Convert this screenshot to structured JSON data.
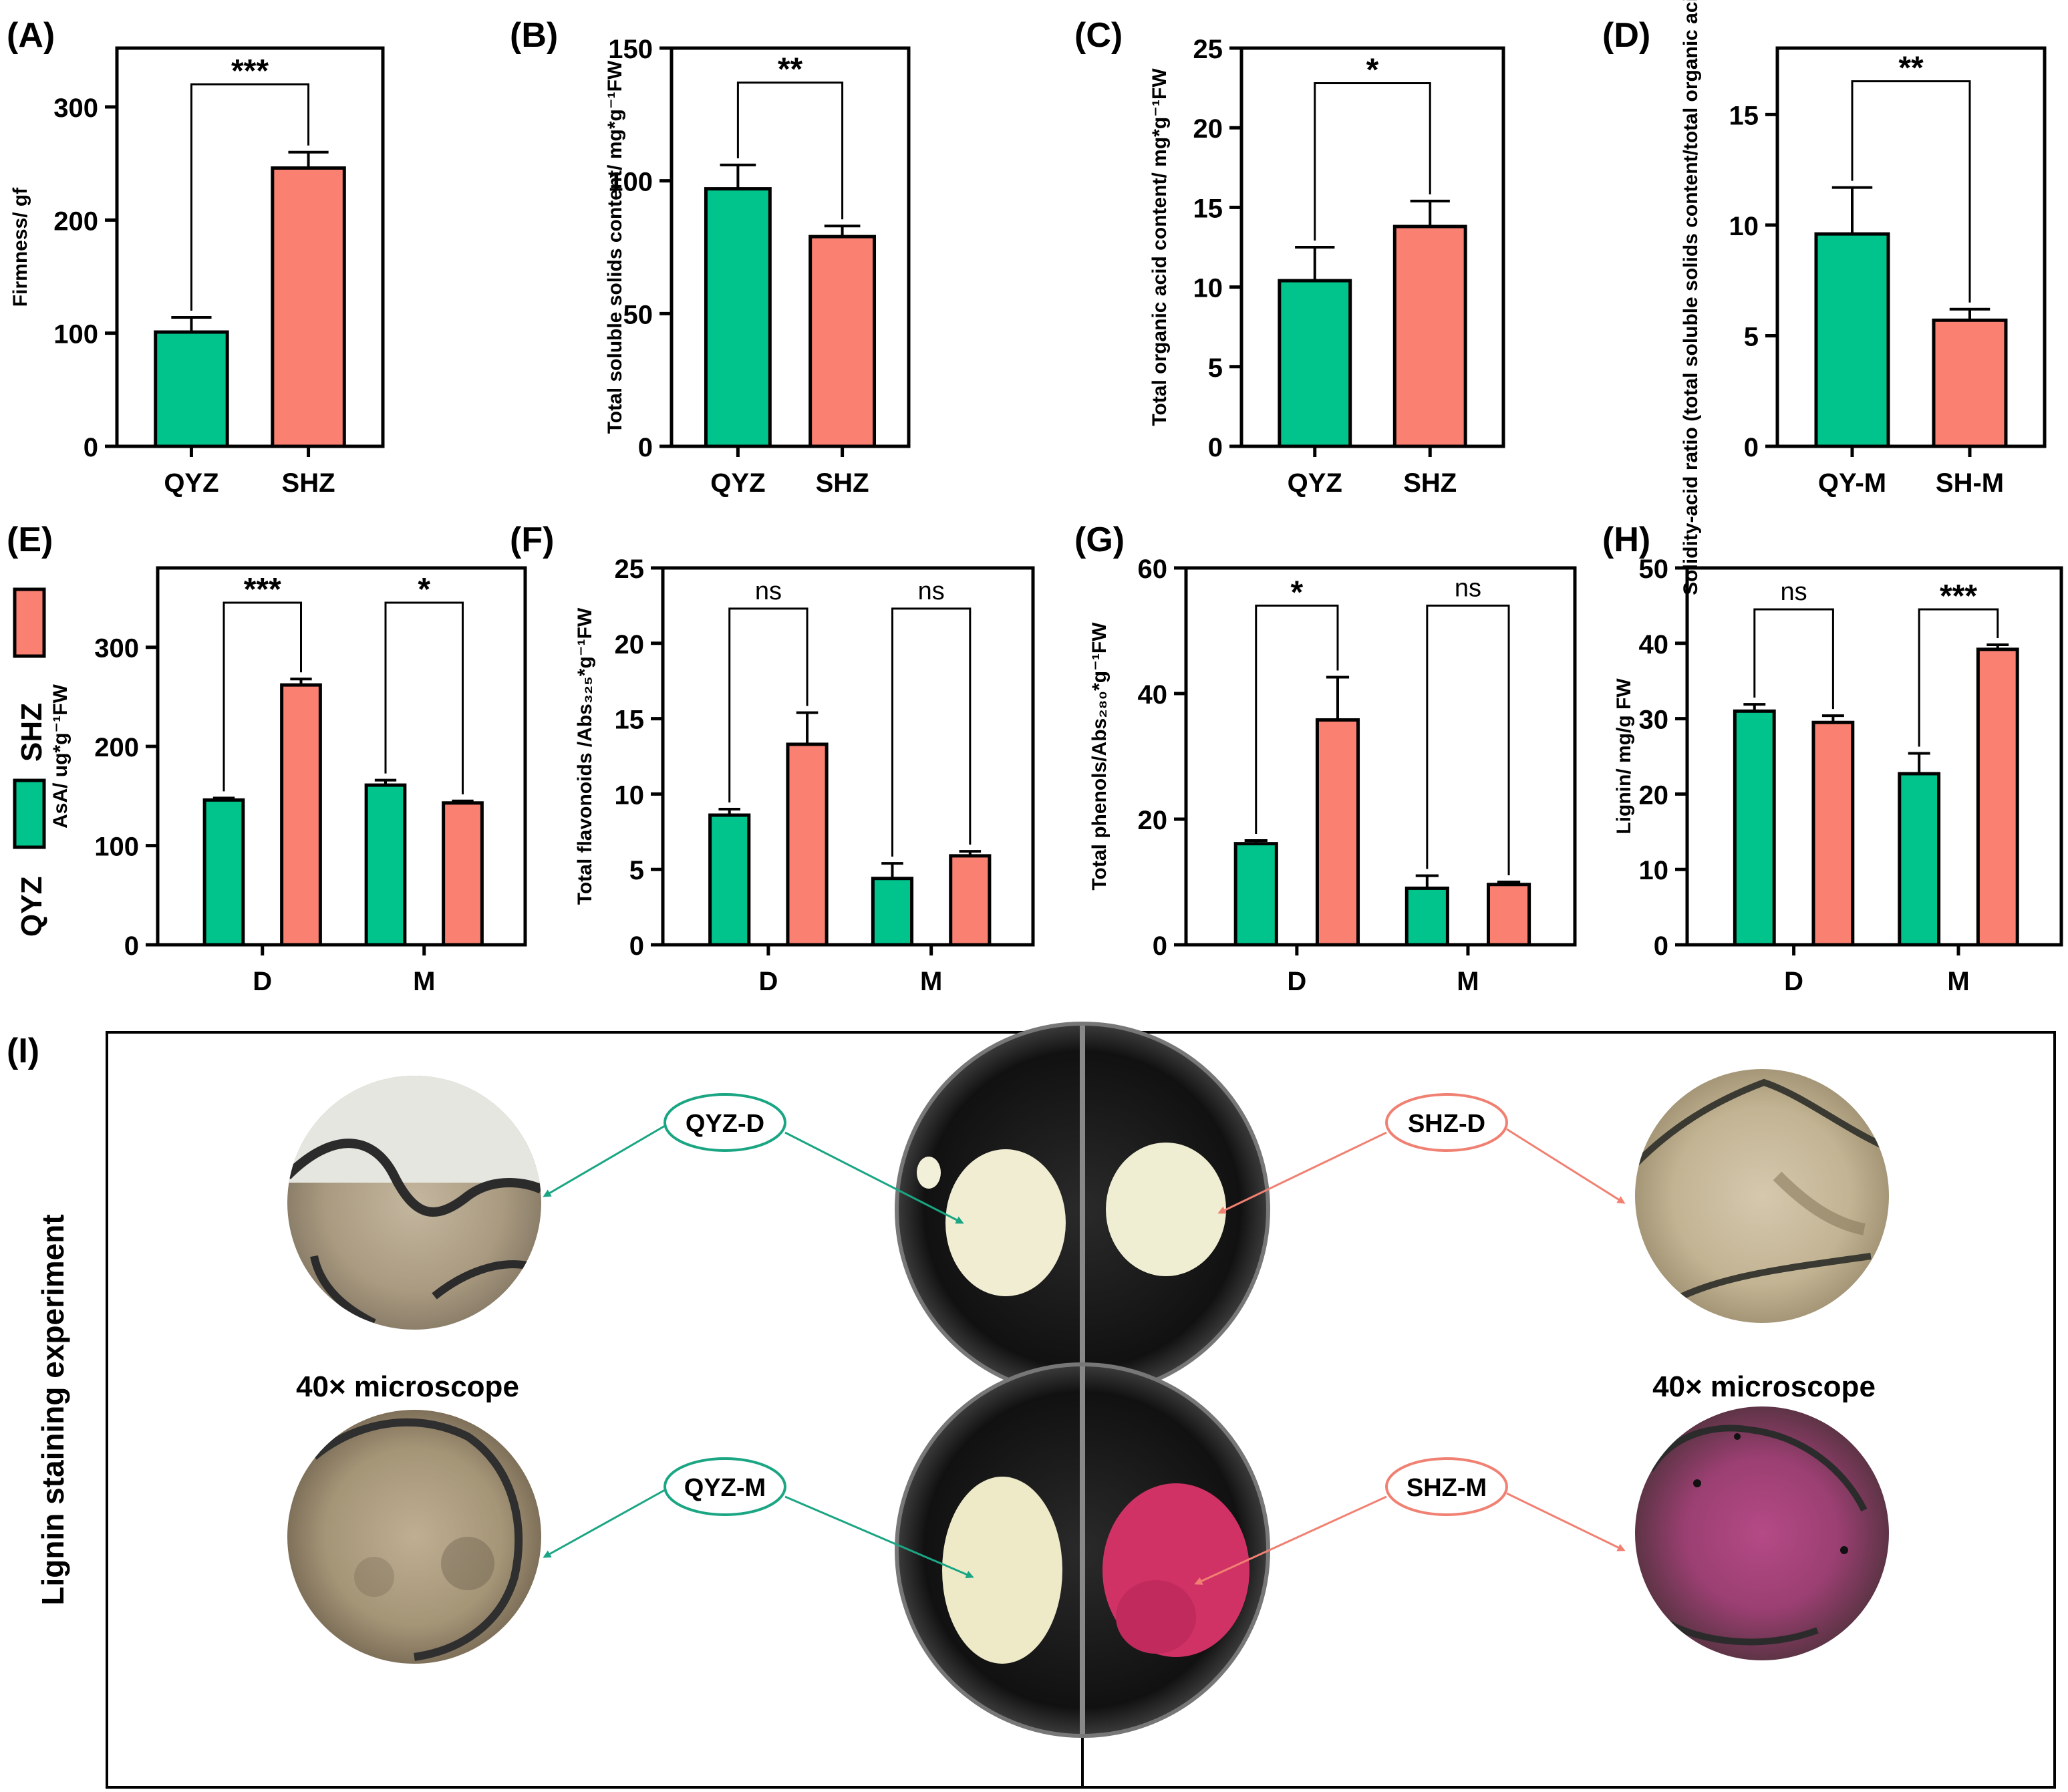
{
  "colors": {
    "qyz": "#00c48c",
    "shz": "#fa8072",
    "axis": "#000000",
    "photo_bg": "#ffffff"
  },
  "legend": {
    "items": [
      {
        "label": "SHZ",
        "color": "#fa8072"
      },
      {
        "label": "QYZ",
        "color": "#00c48c"
      }
    ]
  },
  "chart_data": [
    {
      "panel": "(A)",
      "type": "bar",
      "xlabel": "",
      "ylabel": "Firmness/ gf",
      "categories": [
        "QYZ",
        "SHZ"
      ],
      "values": [
        101,
        246
      ],
      "errors": [
        13,
        14
      ],
      "bar_colors": [
        "#00c48c",
        "#fa8072"
      ],
      "ylim": [
        0,
        300
      ],
      "yticks": [
        0,
        100,
        200,
        300
      ],
      "ymax_frame": 352,
      "grid": false,
      "significance": [
        {
          "from": 0,
          "to": 1,
          "label": "***",
          "y": 320
        }
      ]
    },
    {
      "panel": "(B)",
      "type": "bar",
      "xlabel": "",
      "ylabel": "Total soluble solids content/ mg*g⁻¹FW",
      "categories": [
        "QYZ",
        "SHZ"
      ],
      "values": [
        97,
        79
      ],
      "errors": [
        9,
        4
      ],
      "bar_colors": [
        "#00c48c",
        "#fa8072"
      ],
      "ylim": [
        0,
        150
      ],
      "yticks": [
        0,
        50,
        100,
        150
      ],
      "ymax_frame": 150,
      "grid": false,
      "significance": [
        {
          "from": 0,
          "to": 1,
          "label": "**",
          "y": 137
        }
      ]
    },
    {
      "panel": "(C)",
      "type": "bar",
      "xlabel": "",
      "ylabel": "Total organic acid content/ mg*g⁻¹FW",
      "categories": [
        "QYZ",
        "SHZ"
      ],
      "values": [
        10.4,
        13.8
      ],
      "errors": [
        2.1,
        1.6
      ],
      "bar_colors": [
        "#00c48c",
        "#fa8072"
      ],
      "ylim": [
        0,
        25
      ],
      "yticks": [
        0,
        5,
        10,
        15,
        20,
        25
      ],
      "ymax_frame": 25,
      "grid": false,
      "significance": [
        {
          "from": 0,
          "to": 1,
          "label": "*",
          "y": 22.8
        }
      ]
    },
    {
      "panel": "(D)",
      "type": "bar",
      "xlabel": "",
      "ylabel": "Solidity-acid ratio (total soluble solids content/total organic acid content)",
      "categories": [
        "QY-M",
        "SH-M"
      ],
      "values": [
        9.6,
        5.7
      ],
      "errors": [
        2.1,
        0.5
      ],
      "bar_colors": [
        "#00c48c",
        "#fa8072"
      ],
      "ylim": [
        0,
        15
      ],
      "yticks": [
        0,
        5,
        10,
        15
      ],
      "ymax_frame": 18,
      "grid": false,
      "significance": [
        {
          "from": 0,
          "to": 1,
          "label": "**",
          "y": 16.5
        }
      ]
    },
    {
      "panel": "(E)",
      "type": "bar",
      "xlabel": "",
      "ylabel": "AsA/ ug*g⁻¹FW",
      "categories": [
        "D",
        "M"
      ],
      "series": [
        {
          "name": "QYZ",
          "values": [
            146,
            161
          ],
          "errors": [
            2,
            5
          ]
        },
        {
          "name": "SHZ",
          "values": [
            262,
            143
          ],
          "errors": [
            6,
            2
          ]
        }
      ],
      "ylim": [
        0,
        300
      ],
      "yticks": [
        0,
        100,
        200,
        300
      ],
      "ymax_frame": 380,
      "grid": false,
      "significance": [
        {
          "from": 0,
          "to": 1,
          "label": "***",
          "y": 345
        },
        {
          "from": 2,
          "to": 3,
          "label": "*",
          "y": 345
        }
      ]
    },
    {
      "panel": "(F)",
      "type": "bar",
      "xlabel": "",
      "ylabel": "Total flavonoids /Abs₃₂₅*g⁻¹FW",
      "categories": [
        "D",
        "M"
      ],
      "series": [
        {
          "name": "QYZ",
          "values": [
            8.6,
            4.4
          ],
          "errors": [
            0.4,
            1.0
          ]
        },
        {
          "name": "SHZ",
          "values": [
            13.3,
            5.9
          ],
          "errors": [
            2.1,
            0.3
          ]
        }
      ],
      "ylim": [
        0,
        25
      ],
      "yticks": [
        0,
        5,
        10,
        15,
        20,
        25
      ],
      "ymax_frame": 25,
      "grid": false,
      "significance": [
        {
          "from": 0,
          "to": 1,
          "label": "ns",
          "y": 22.3
        },
        {
          "from": 2,
          "to": 3,
          "label": "ns",
          "y": 22.3
        }
      ]
    },
    {
      "panel": "(G)",
      "type": "bar",
      "xlabel": "",
      "ylabel": "Total phenols/Abs₂₈₀*g⁻¹FW",
      "categories": [
        "D",
        "M"
      ],
      "series": [
        {
          "name": "QYZ",
          "values": [
            16.1,
            9.0
          ],
          "errors": [
            0.5,
            2.0
          ]
        },
        {
          "name": "SHZ",
          "values": [
            35.8,
            9.6
          ],
          "errors": [
            6.8,
            0.4
          ]
        }
      ],
      "ylim": [
        0,
        60
      ],
      "yticks": [
        0,
        20,
        40,
        60
      ],
      "ymax_frame": 60,
      "grid": false,
      "significance": [
        {
          "from": 0,
          "to": 1,
          "label": "*",
          "y": 54
        },
        {
          "from": 2,
          "to": 3,
          "label": "ns",
          "y": 54
        }
      ]
    },
    {
      "panel": "(H)",
      "type": "bar",
      "xlabel": "",
      "ylabel": "Lignin/ mg/g FW",
      "categories": [
        "D",
        "M"
      ],
      "series": [
        {
          "name": "QYZ",
          "values": [
            31.0,
            22.7
          ],
          "errors": [
            0.9,
            2.7
          ]
        },
        {
          "name": "SHZ",
          "values": [
            29.5,
            39.2
          ],
          "errors": [
            0.9,
            0.6
          ]
        }
      ],
      "ylim": [
        0,
        50
      ],
      "yticks": [
        0,
        10,
        20,
        30,
        40,
        50
      ],
      "ymax_frame": 50,
      "grid": false,
      "significance": [
        {
          "from": 0,
          "to": 1,
          "label": "ns",
          "y": 44.5
        },
        {
          "from": 2,
          "to": 3,
          "label": "***",
          "y": 44.5
        }
      ]
    }
  ],
  "panel_i": {
    "letter": "(I)",
    "side_title": "Lignin staining experiment",
    "labels": {
      "qyz_d": "QYZ-D",
      "qyz_m": "QYZ-M",
      "shz_d": "SHZ-D",
      "shz_m": "SHZ-M"
    },
    "microscope_left": "40× microscope",
    "microscope_right": "40× microscope"
  }
}
